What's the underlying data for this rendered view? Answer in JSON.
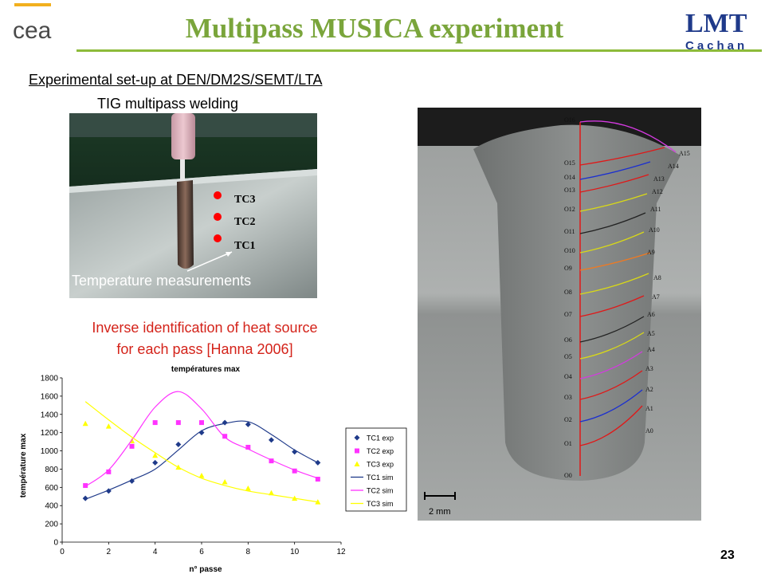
{
  "slide": {
    "title": "Multipass MUSICA experiment",
    "setup_heading": "Experimental set-up at DEN/DM2S/SEMT/LTA",
    "tig_label": "TIG multipass welding",
    "inverse_line1": "Inverse identification of heat source",
    "inverse_line2": "for each pass [Hanna 2006]",
    "slide_number": "23",
    "accent_green": "#7aa53b",
    "accent_red": "#d4231a"
  },
  "logos": {
    "cea_text": "cea",
    "lmt_text": "LMT",
    "lmt_sub": "Cachan"
  },
  "photo": {
    "thermocouples": [
      "TC3",
      "TC2",
      "TC1"
    ],
    "caption": "Temperature measurements"
  },
  "macrograph": {
    "scale_label": "2 mm",
    "left_labels": [
      "O16",
      "O15",
      "O14",
      "O13",
      "O12",
      "O11",
      "O10",
      "O9",
      "O8",
      "O7",
      "O6",
      "O5",
      "O4",
      "O3",
      "O2",
      "O1",
      "O0"
    ],
    "right_labels": [
      "A15",
      "A14",
      "A13",
      "A12",
      "A11",
      "A10",
      "A9",
      "A8",
      "A7",
      "A6",
      "A5",
      "A4",
      "A3",
      "A2",
      "A1",
      "A0"
    ]
  },
  "chart_data": {
    "type": "scatter",
    "title": "températures max",
    "xlabel": "n° passe",
    "ylabel": "température max",
    "xlim": [
      0,
      12
    ],
    "ylim": [
      0,
      1800
    ],
    "xticks": [
      0,
      2,
      4,
      6,
      8,
      10,
      12
    ],
    "yticks": [
      0,
      200,
      400,
      600,
      800,
      1000,
      1200,
      1400,
      1600,
      1800
    ],
    "grid": false,
    "legend_position": "right",
    "series": [
      {
        "name": "TC1 exp",
        "kind": "marker",
        "marker": "diamond",
        "color": "#1f3a8a",
        "x": [
          1,
          2,
          3,
          4,
          5,
          6,
          7,
          8,
          9,
          10,
          11
        ],
        "y": [
          480,
          560,
          670,
          870,
          1070,
          1200,
          1310,
          1290,
          1120,
          990,
          870
        ]
      },
      {
        "name": "TC2 exp",
        "kind": "marker",
        "marker": "square",
        "color": "#ff33ff",
        "x": [
          1,
          2,
          3,
          4,
          5,
          6,
          7,
          8,
          9,
          10,
          11
        ],
        "y": [
          620,
          770,
          1050,
          1310,
          1310,
          1310,
          1160,
          1040,
          890,
          780,
          690
        ]
      },
      {
        "name": "TC3 exp",
        "kind": "marker",
        "marker": "triangle",
        "color": "#ffff00",
        "x": [
          1,
          2,
          3,
          4,
          5,
          6,
          7,
          8,
          9,
          10,
          11
        ],
        "y": [
          1300,
          1270,
          1110,
          950,
          820,
          730,
          660,
          590,
          540,
          480,
          440
        ]
      },
      {
        "name": "TC1 sim",
        "kind": "line",
        "color": "#1f3a8a",
        "x": [
          1,
          2,
          3,
          4,
          5,
          6,
          7,
          8,
          9,
          10,
          11
        ],
        "y": [
          470,
          570,
          680,
          800,
          1010,
          1220,
          1300,
          1320,
          1180,
          1010,
          870
        ]
      },
      {
        "name": "TC2 sim",
        "kind": "line",
        "color": "#ff33ff",
        "x": [
          1,
          2,
          3,
          4,
          5,
          6,
          7,
          8,
          9,
          10,
          11
        ],
        "y": [
          610,
          790,
          1120,
          1480,
          1650,
          1460,
          1150,
          1020,
          900,
          790,
          700
        ]
      },
      {
        "name": "TC3 sim",
        "kind": "line",
        "color": "#ffff00",
        "x": [
          1,
          2,
          3,
          4,
          5,
          6,
          7,
          8,
          9,
          10,
          11
        ],
        "y": [
          1540,
          1340,
          1150,
          980,
          820,
          700,
          620,
          560,
          520,
          480,
          440
        ]
      }
    ]
  }
}
